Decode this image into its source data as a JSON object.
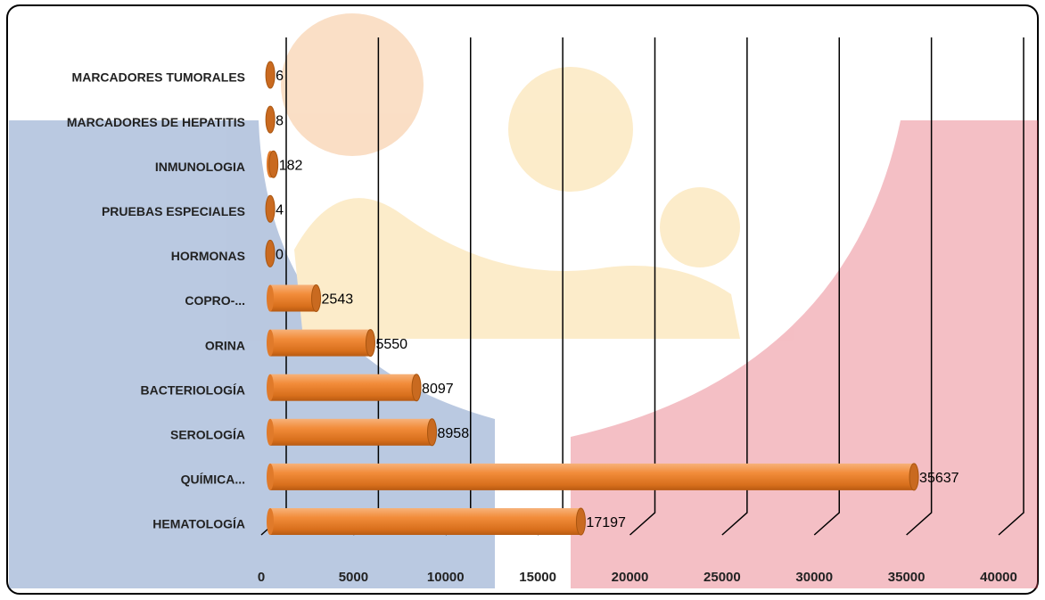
{
  "chart_data": {
    "type": "bar",
    "orientation": "horizontal",
    "categories": [
      "MARCADORES TUMORALES",
      "MARCADORES DE HEPATITIS",
      "INMUNOLOGIA",
      "PRUEBAS ESPECIALES",
      "HORMONAS",
      "COPRO-...",
      "ORINA",
      "BACTERIOLOGÍA",
      "SEROLOGÍA",
      "QUÍMICA...",
      "HEMATOLOGÍA"
    ],
    "values": [
      6,
      8,
      182,
      4,
      0,
      2543,
      5550,
      8097,
      8958,
      35637,
      17197
    ],
    "color": "#e8822a",
    "xlim": [
      0,
      40000
    ],
    "xticks": [
      0,
      5000,
      10000,
      15000,
      20000,
      25000,
      30000,
      35000,
      40000
    ],
    "grid": true
  }
}
